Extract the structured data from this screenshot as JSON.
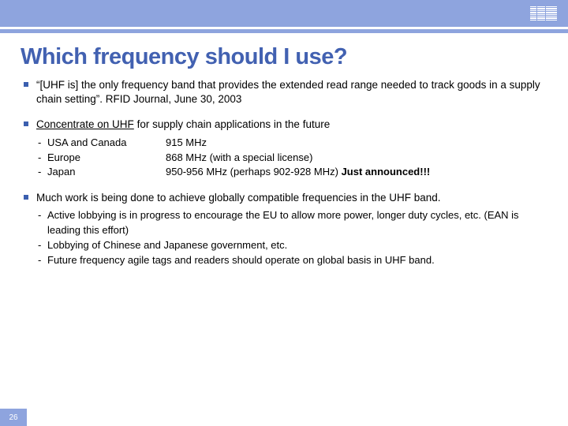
{
  "title": "Which frequency should I use?",
  "page": "26",
  "colors": {
    "accent": "#8ea4de",
    "title": "#4261b1",
    "bullet": "#3b5faf",
    "text": "#000000",
    "bg": "#ffffff"
  },
  "bullets": [
    {
      "text": "“[UHF is] the only frequency band that provides the extended read range needed to track goods in a supply chain setting”.  RFID Journal, June 30, 2003"
    },
    {
      "underline": "Concentrate on UHF",
      "rest": " for supply chain applications in the future",
      "sub": [
        {
          "region": "USA and Canada",
          "value": "915 MHz"
        },
        {
          "region": "Europe",
          "value": "868 MHz (with a special license)"
        },
        {
          "region": "Japan",
          "value": "950-956 MHz (perhaps 902-928 MHz) ",
          "emph": "Just announced!!!"
        }
      ]
    },
    {
      "text": "Much work is being done to achieve globally compatible frequencies in the UHF band.",
      "sub": [
        "Active lobbying is in progress to encourage the EU to allow more power, longer duty cycles, etc.  (EAN is leading this effort)",
        "Lobbying of Chinese and Japanese government, etc.",
        "Future frequency agile tags and readers should operate on global basis in UHF band."
      ]
    }
  ]
}
